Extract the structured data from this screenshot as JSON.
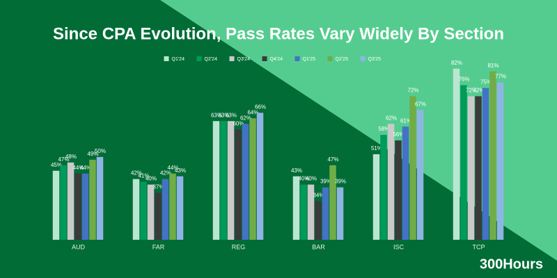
{
  "chart_data": {
    "type": "bar",
    "title": "Since CPA Evolution, Pass Rates Vary Widely By Section",
    "brand": "300Hours",
    "categories": [
      "AUD",
      "FAR",
      "REG",
      "BAR",
      "ISC",
      "TCP"
    ],
    "ylim": [
      20,
      90
    ],
    "series": [
      {
        "name": "Q1'24",
        "color": "#b9e6d0",
        "values": [
          45,
          42,
          63,
          43,
          51,
          82
        ],
        "value_labels": [
          "45%",
          "42%",
          "63%",
          "43%",
          "51%",
          "82%"
        ]
      },
      {
        "name": "Q2'24",
        "color": "#009a5a",
        "values": [
          47,
          41,
          63,
          40,
          58,
          76
        ],
        "value_labels": [
          "47%",
          "41%",
          "63%",
          "40%",
          "58%",
          "76%"
        ]
      },
      {
        "name": "Q3'24",
        "color": "#cacaca",
        "values": [
          48,
          40,
          63,
          40,
          62,
          72
        ],
        "value_labels": [
          "48%",
          "40%",
          "63%",
          "40%",
          "62%",
          "72%"
        ]
      },
      {
        "name": "Q4'24",
        "color": "#3a3a3a",
        "values": [
          44,
          37,
          60,
          34,
          56,
          72
        ],
        "value_labels": [
          "44%",
          "37%",
          "60%",
          "34%",
          "56%",
          "72%"
        ]
      },
      {
        "name": "Q1'25",
        "color": "#4472c4",
        "values": [
          44,
          42,
          62,
          39,
          61,
          75
        ],
        "value_labels": [
          "44%",
          "42%",
          "62%",
          "39%",
          "61%",
          "75%"
        ]
      },
      {
        "name": "Q2'25",
        "color": "#70ad47",
        "values": [
          49,
          44,
          64,
          47,
          72,
          81
        ],
        "value_labels": [
          "49%",
          "44%",
          "64%",
          "47%",
          "72%",
          "81%"
        ]
      },
      {
        "name": "Q3'25",
        "color": "#8fb4e3",
        "values": [
          50,
          43,
          66,
          39,
          67,
          77
        ],
        "value_labels": [
          "50%",
          "43%",
          "66%",
          "39%",
          "67%",
          "77%"
        ]
      }
    ]
  }
}
